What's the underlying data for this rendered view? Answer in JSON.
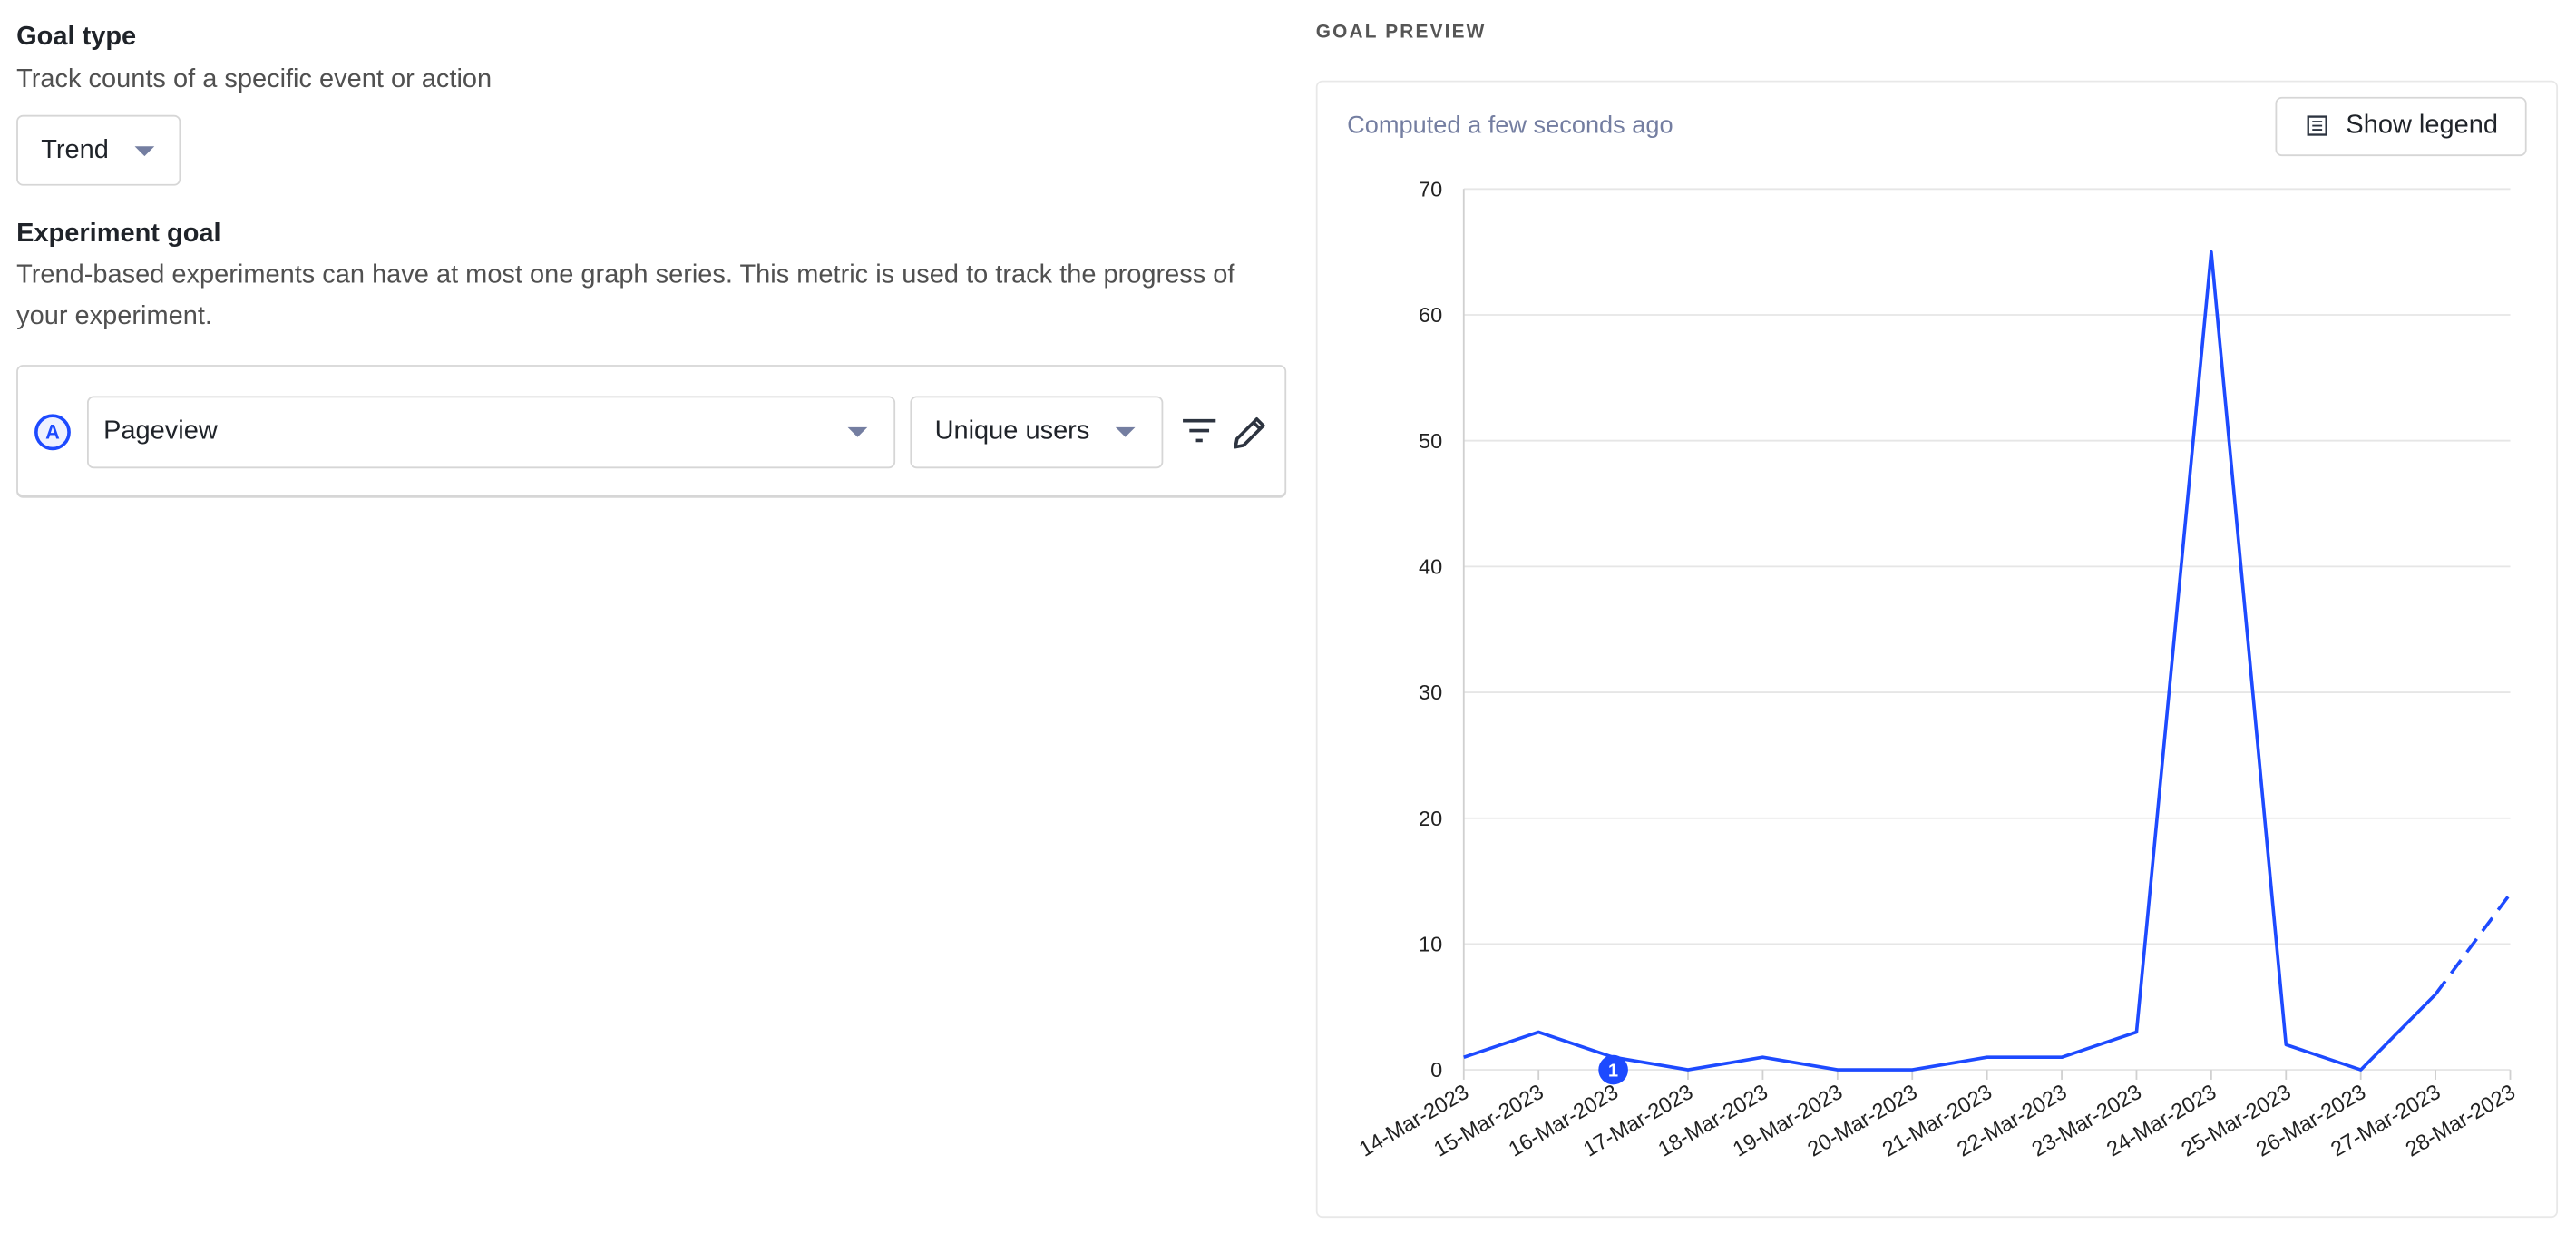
{
  "goal_type": {
    "title": "Goal type",
    "description": "Track counts of a specific event or action",
    "selector": "Trend"
  },
  "experiment_goal": {
    "title": "Experiment goal",
    "description": "Trend-based experiments can have at most one graph series. This metric is used to track the progress of your experiment.",
    "series_letter": "A",
    "event": "Pageview",
    "aggregation": "Unique users"
  },
  "preview": {
    "heading": "GOAL PREVIEW",
    "computed": "Computed a few seconds ago",
    "legend_button": "Show legend"
  },
  "chart_data": {
    "type": "line",
    "categories": [
      "14-Mar-2023",
      "15-Mar-2023",
      "16-Mar-2023",
      "17-Mar-2023",
      "18-Mar-2023",
      "19-Mar-2023",
      "20-Mar-2023",
      "21-Mar-2023",
      "22-Mar-2023",
      "23-Mar-2023",
      "24-Mar-2023",
      "25-Mar-2023",
      "26-Mar-2023",
      "27-Mar-2023",
      "28-Mar-2023"
    ],
    "values": [
      1,
      3,
      1,
      0,
      1,
      0,
      0,
      1,
      1,
      3,
      65,
      2,
      0,
      6,
      14
    ],
    "color": "#1d4aff",
    "dashed_last_segment": true,
    "ylim": [
      0,
      70
    ],
    "yticks": [
      0,
      10,
      20,
      30,
      40,
      50,
      60,
      70
    ],
    "grid": true,
    "annotations": [
      {
        "category_index": 2,
        "label": "1"
      }
    ]
  }
}
